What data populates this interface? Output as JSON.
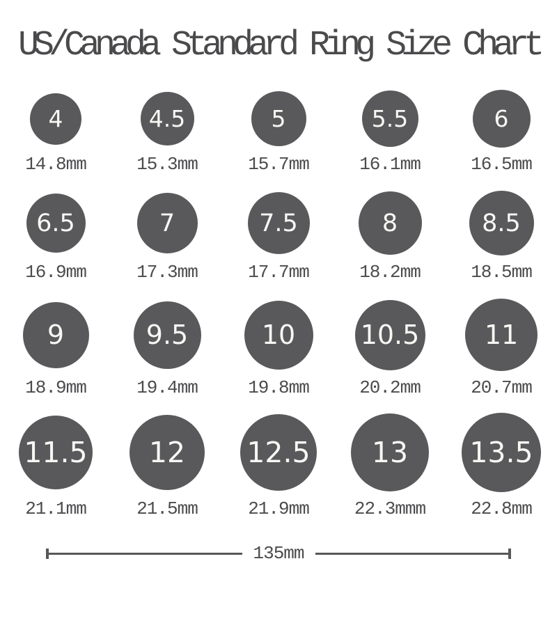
{
  "title": "US/Canada Standard Ring Size Chart",
  "colors": {
    "circle_fill": "#59595b",
    "circle_text": "#f7f7f4",
    "title_text": "#4a4a4c",
    "label_text": "#4c4c4e",
    "scale_bar": "#58585a",
    "background": "#ffffff"
  },
  "chart_data": {
    "type": "table",
    "title": "US/Canada Standard Ring Size Chart",
    "columns": [
      "ring_size_us_canada",
      "inner_diameter_mm"
    ],
    "rows": [
      [
        4,
        14.8
      ],
      [
        4.5,
        15.3
      ],
      [
        5,
        15.7
      ],
      [
        5.5,
        16.1
      ],
      [
        6,
        16.5
      ],
      [
        6.5,
        16.9
      ],
      [
        7,
        17.3
      ],
      [
        7.5,
        17.7
      ],
      [
        8,
        18.2
      ],
      [
        8.5,
        18.5
      ],
      [
        9,
        18.9
      ],
      [
        9.5,
        19.4
      ],
      [
        10,
        19.8
      ],
      [
        10.5,
        20.2
      ],
      [
        11,
        20.7
      ],
      [
        11.5,
        21.1
      ],
      [
        12,
        21.5
      ],
      [
        12.5,
        21.9
      ],
      [
        13,
        22.3
      ],
      [
        13.5,
        22.8
      ]
    ],
    "layout_hints": {
      "grid": "4 rows x 5 columns of circles scaled to diameter",
      "scale_reference_label": "135mm"
    }
  },
  "rows": [
    {
      "items": [
        {
          "size": "4",
          "mm": "14.8mm",
          "mm_value": 14.8
        },
        {
          "size": "4.5",
          "mm": "15.3mm",
          "mm_value": 15.3
        },
        {
          "size": "5",
          "mm": "15.7mm",
          "mm_value": 15.7
        },
        {
          "size": "5.5",
          "mm": "16.1mm",
          "mm_value": 16.1
        },
        {
          "size": "6",
          "mm": "16.5mm",
          "mm_value": 16.5
        }
      ]
    },
    {
      "items": [
        {
          "size": "6.5",
          "mm": "16.9mm",
          "mm_value": 16.9
        },
        {
          "size": "7",
          "mm": "17.3mm",
          "mm_value": 17.3
        },
        {
          "size": "7.5",
          "mm": "17.7mm",
          "mm_value": 17.7
        },
        {
          "size": "8",
          "mm": "18.2mm",
          "mm_value": 18.2
        },
        {
          "size": "8.5",
          "mm": "18.5mm",
          "mm_value": 18.5
        }
      ]
    },
    {
      "items": [
        {
          "size": "9",
          "mm": "18.9mm",
          "mm_value": 18.9
        },
        {
          "size": "9.5",
          "mm": "19.4mm",
          "mm_value": 19.4
        },
        {
          "size": "10",
          "mm": "19.8mm",
          "mm_value": 19.8
        },
        {
          "size": "10.5",
          "mm": "20.2mm",
          "mm_value": 20.2
        },
        {
          "size": "11",
          "mm": "20.7mm",
          "mm_value": 20.7
        }
      ]
    },
    {
      "items": [
        {
          "size": "11.5",
          "mm": "21.1mm",
          "mm_value": 21.1
        },
        {
          "size": "12",
          "mm": "21.5mm",
          "mm_value": 21.5
        },
        {
          "size": "12.5",
          "mm": "21.9mm",
          "mm_value": 21.9
        },
        {
          "size": "13",
          "mm": "22.3mmm",
          "mm_value": 22.3
        },
        {
          "size": "13.5",
          "mm": "22.8mm",
          "mm_value": 22.8
        }
      ]
    }
  ],
  "scale_bar": {
    "label": "135mm"
  }
}
